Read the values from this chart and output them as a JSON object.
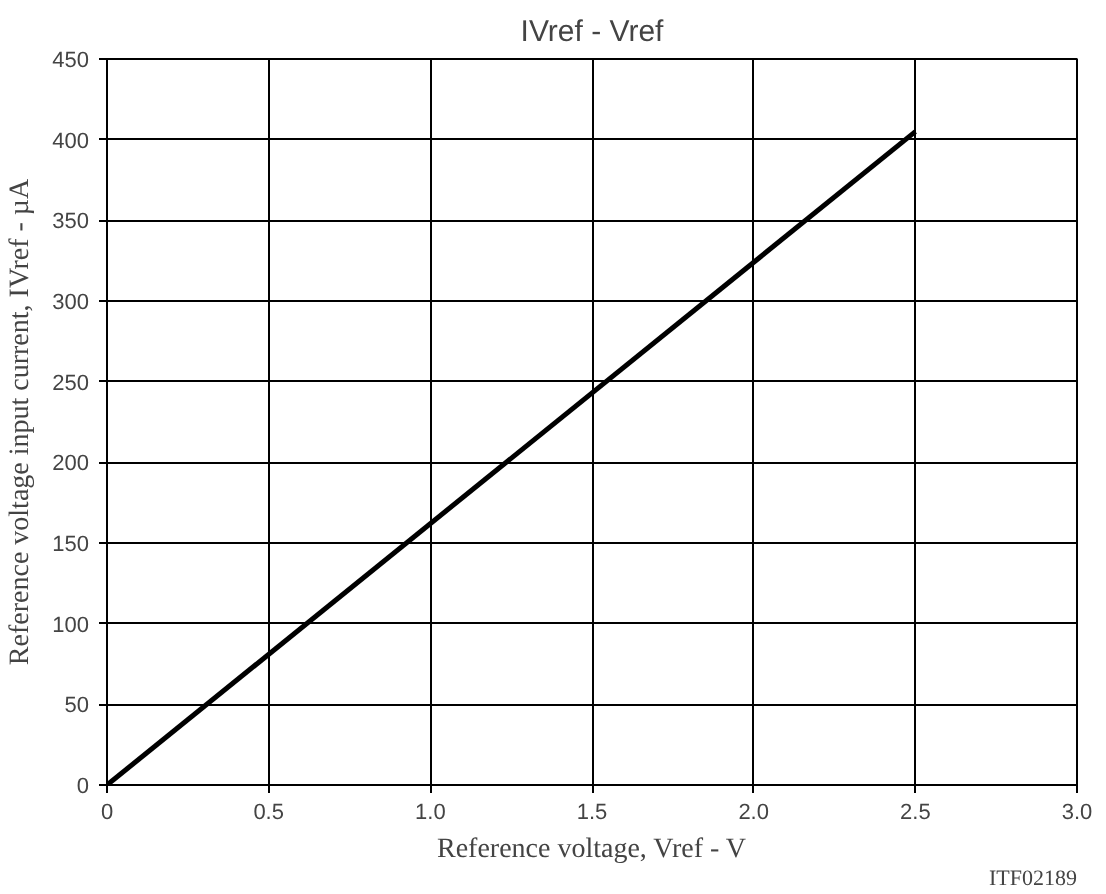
{
  "chart_data": {
    "type": "line",
    "title": "IVref - Vref",
    "xlabel": "Reference voltage, Vref - V",
    "ylabel": "Reference voltage input current, IVref - µA",
    "x": [
      0,
      2.5
    ],
    "series": [
      {
        "color": "#000000",
        "values": [
          0,
          405
        ]
      }
    ],
    "xlim": [
      0,
      3
    ],
    "xticks": [
      {
        "value": 0,
        "label": "0"
      },
      0.5,
      {
        "value": 1,
        "label": "1.0"
      },
      1.5,
      {
        "value": 2,
        "label": "2.0"
      },
      2.5,
      {
        "value": 3,
        "label": "3.0"
      }
    ],
    "ylim": [
      0,
      450
    ],
    "yticks": [
      0,
      50,
      100,
      150,
      200,
      250,
      300,
      350,
      400,
      450
    ],
    "grid": true,
    "marker": "none",
    "line_style": "solid",
    "annotations": [
      "ITF02189"
    ]
  }
}
